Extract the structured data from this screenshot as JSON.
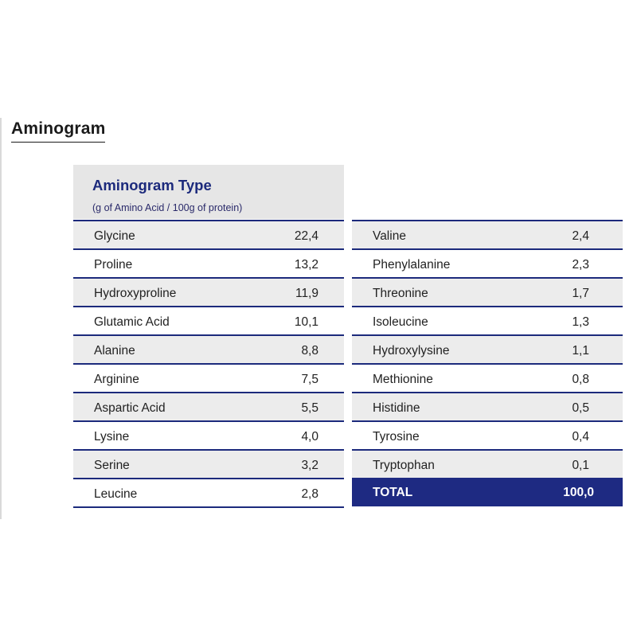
{
  "title": "Aminogram",
  "table": {
    "header_title": "Aminogram Type",
    "header_subtitle": "(g of Amino Acid / 100g of protein)",
    "left_rows": [
      {
        "name": "Glycine",
        "value": "22,4"
      },
      {
        "name": "Proline",
        "value": "13,2"
      },
      {
        "name": "Hydroxyproline",
        "value": "11,9"
      },
      {
        "name": "Glutamic Acid",
        "value": "10,1"
      },
      {
        "name": "Alanine",
        "value": "8,8"
      },
      {
        "name": "Arginine",
        "value": "7,5"
      },
      {
        "name": "Aspartic Acid",
        "value": "5,5"
      },
      {
        "name": "Lysine",
        "value": "4,0"
      },
      {
        "name": "Serine",
        "value": "3,2"
      },
      {
        "name": "Leucine",
        "value": "2,8"
      }
    ],
    "right_rows": [
      {
        "name": "Valine",
        "value": "2,4"
      },
      {
        "name": "Phenylalanine",
        "value": "2,3"
      },
      {
        "name": "Threonine",
        "value": "1,7"
      },
      {
        "name": "Isoleucine",
        "value": "1,3"
      },
      {
        "name": "Hydroxylysine",
        "value": "1,1"
      },
      {
        "name": "Methionine",
        "value": "0,8"
      },
      {
        "name": "Histidine",
        "value": "0,5"
      },
      {
        "name": "Tyrosine",
        "value": "0,4"
      },
      {
        "name": "Tryptophan",
        "value": "0,1"
      }
    ],
    "total": {
      "name": "TOTAL",
      "value": "100,0"
    }
  },
  "colors": {
    "accent": "#1c2a7c",
    "total_bg": "#1e2a82",
    "header_bg": "#e6e6e6",
    "shaded_row": "#ececec"
  }
}
